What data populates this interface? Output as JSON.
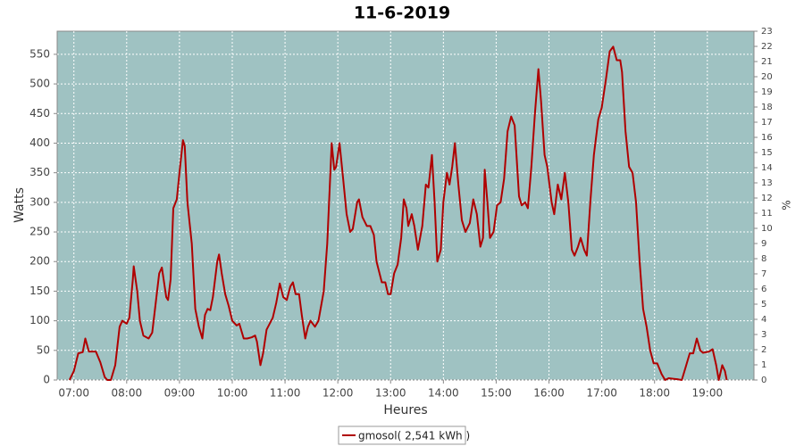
{
  "chart_data": {
    "type": "line",
    "title": "11-6-2019",
    "x_label": "Heures",
    "y_label": "Watts",
    "y2_label": "%",
    "xlim": [
      "06:41",
      "19:53"
    ],
    "xticks": [
      "07:00",
      "08:00",
      "09:00",
      "10:00",
      "11:00",
      "12:00",
      "13:00",
      "14:00",
      "15:00",
      "16:00",
      "17:00",
      "18:00",
      "19:00"
    ],
    "ylim": [
      0,
      589
    ],
    "yticks": [
      0,
      50,
      100,
      150,
      200,
      250,
      300,
      350,
      400,
      450,
      500,
      550
    ],
    "y2lim": [
      0,
      23
    ],
    "y2ticks": [
      0,
      1,
      2,
      3,
      4,
      5,
      6,
      7,
      8,
      9,
      10,
      11,
      12,
      13,
      14,
      15,
      16,
      17,
      18,
      19,
      20,
      21,
      22,
      23
    ],
    "grid": true,
    "legend": "bottom",
    "x": [
      "06:55",
      "07:00",
      "07:05",
      "07:10",
      "07:13",
      "07:17",
      "07:25",
      "07:30",
      "07:35",
      "07:38",
      "07:42",
      "07:47",
      "07:52",
      "07:55",
      "08:00",
      "08:03",
      "08:07",
      "08:08",
      "08:12",
      "08:15",
      "08:19",
      "08:25",
      "08:29",
      "08:33",
      "08:37",
      "08:40",
      "08:45",
      "08:47",
      "08:50",
      "08:53",
      "08:57",
      "09:00",
      "09:04",
      "09:06",
      "09:09",
      "09:14",
      "09:18",
      "09:22",
      "09:26",
      "09:29",
      "09:32",
      "09:35",
      "09:38",
      "09:43",
      "09:45",
      "09:48",
      "09:52",
      "09:56",
      "10:00",
      "10:05",
      "10:08",
      "10:13",
      "10:17",
      "10:22",
      "10:26",
      "10:28",
      "10:32",
      "10:35",
      "10:39",
      "10:46",
      "10:50",
      "10:54",
      "10:58",
      "11:02",
      "11:06",
      "11:09",
      "11:12",
      "11:16",
      "11:19",
      "11:23",
      "11:26",
      "11:29",
      "11:34",
      "11:38",
      "11:44",
      "11:48",
      "11:53",
      "11:56",
      "11:58",
      "12:02",
      "12:06",
      "12:10",
      "12:14",
      "12:17",
      "12:22",
      "12:24",
      "12:28",
      "12:33",
      "12:37",
      "12:41",
      "12:44",
      "12:50",
      "12:54",
      "12:57",
      "13:00",
      "13:04",
      "13:08",
      "13:12",
      "13:15",
      "13:18",
      "13:20",
      "13:24",
      "13:27",
      "13:31",
      "13:36",
      "13:40",
      "13:43",
      "13:47",
      "13:50",
      "13:53",
      "13:57",
      "14:00",
      "14:04",
      "14:07",
      "14:10",
      "14:13",
      "14:17",
      "14:21",
      "14:25",
      "14:30",
      "14:34",
      "14:38",
      "14:42",
      "14:45",
      "14:47",
      "14:50",
      "14:53",
      "14:57",
      "15:01",
      "15:05",
      "15:09",
      "15:13",
      "15:17",
      "15:21",
      "15:26",
      "15:29",
      "15:33",
      "15:36",
      "15:40",
      "15:44",
      "15:48",
      "15:51",
      "15:55",
      "15:58",
      "16:03",
      "16:06",
      "16:10",
      "16:14",
      "16:18",
      "16:22",
      "16:26",
      "16:29",
      "16:33",
      "16:36",
      "16:40",
      "16:43",
      "16:47",
      "16:51",
      "16:56",
      "17:00",
      "17:05",
      "17:09",
      "17:13",
      "17:17",
      "17:21",
      "17:23",
      "17:27",
      "17:31",
      "17:35",
      "17:39",
      "17:43",
      "17:47",
      "17:51",
      "17:55",
      "17:59",
      "18:03",
      "18:08",
      "18:12",
      "18:16",
      "18:22",
      "18:27",
      "18:31",
      "18:35",
      "18:40",
      "18:44",
      "18:48",
      "18:52",
      "18:55",
      "19:02",
      "19:06",
      "19:10",
      "19:13",
      "19:17",
      "19:20",
      "19:22"
    ],
    "series": [
      {
        "name": "gmosol( 2,541 kWh )",
        "color": "#b00000",
        "values": [
          0,
          15,
          45,
          47,
          70,
          48,
          48,
          30,
          5,
          0,
          0,
          25,
          90,
          100,
          95,
          105,
          170,
          192,
          150,
          100,
          75,
          70,
          80,
          130,
          180,
          190,
          140,
          135,
          170,
          290,
          305,
          350,
          405,
          395,
          300,
          230,
          120,
          90,
          70,
          110,
          120,
          118,
          140,
          200,
          212,
          180,
          145,
          125,
          100,
          92,
          95,
          70,
          70,
          72,
          75,
          65,
          25,
          45,
          85,
          105,
          130,
          163,
          140,
          135,
          158,
          165,
          145,
          145,
          110,
          70,
          90,
          100,
          90,
          100,
          150,
          230,
          400,
          355,
          360,
          400,
          340,
          280,
          250,
          255,
          300,
          305,
          275,
          260,
          260,
          245,
          200,
          165,
          165,
          145,
          145,
          180,
          195,
          240,
          305,
          290,
          260,
          280,
          260,
          220,
          260,
          330,
          325,
          380,
          300,
          200,
          220,
          300,
          350,
          330,
          360,
          400,
          330,
          270,
          250,
          265,
          305,
          280,
          225,
          240,
          355,
          300,
          240,
          250,
          295,
          300,
          340,
          420,
          445,
          430,
          310,
          295,
          300,
          290,
          360,
          450,
          525,
          470,
          380,
          360,
          300,
          280,
          330,
          305,
          350,
          300,
          220,
          210,
          225,
          240,
          220,
          210,
          300,
          380,
          440,
          460,
          510,
          555,
          563,
          540,
          540,
          520,
          420,
          360,
          350,
          300,
          200,
          120,
          90,
          50,
          28,
          28,
          10,
          0,
          3,
          2,
          1,
          0,
          20,
          45,
          45,
          70,
          50,
          46,
          48,
          52,
          25,
          0,
          25,
          15,
          0
        ]
      }
    ]
  }
}
